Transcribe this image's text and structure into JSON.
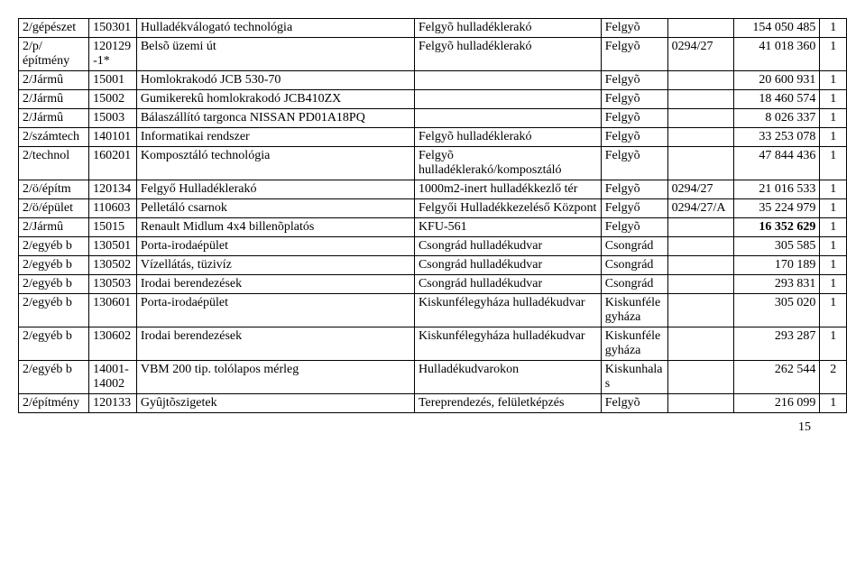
{
  "rows": [
    {
      "c0": "2/gépészet",
      "c1": "150301",
      "c2": "Hulladékválogató technológia",
      "c3": "Felgyõ hulladéklerakó",
      "c4": "Felgyõ",
      "c5": "",
      "c6": "154 050 485",
      "c7": "1"
    },
    {
      "c0": "2/p/építmény",
      "c1": "120129-1*",
      "c2": "Belsõ üzemi út",
      "c3": "Felgyõ hulladéklerakó",
      "c4": "Felgyõ",
      "c5": "0294/27",
      "c6": "41 018 360",
      "c7": "1"
    },
    {
      "c0": "2/Jármû",
      "c1": "15001",
      "c2": "Homlokrakodó JCB 530-70",
      "c3": "",
      "c4": "Felgyõ",
      "c5": "",
      "c6": "20 600 931",
      "c7": "1"
    },
    {
      "c0": "2/Jármû",
      "c1": "15002",
      "c2": "Gumikerekû homlokrakodó JCB410ZX",
      "c3": "",
      "c4": "Felgyõ",
      "c5": "",
      "c6": "18 460 574",
      "c7": "1"
    },
    {
      "c0": "2/Jármû",
      "c1": "15003",
      "c2": "Bálaszállító targonca NISSAN PD01A18PQ",
      "c3": "",
      "c4": "Felgyõ",
      "c5": "",
      "c6": "8 026 337",
      "c7": "1"
    },
    {
      "c0": "2/számtech",
      "c1": "140101",
      "c2": "Informatikai rendszer",
      "c3": "Felgyõ hulladéklerakó",
      "c4": "Felgyõ",
      "c5": "",
      "c6": "33 253 078",
      "c7": "1"
    },
    {
      "c0": "2/technol",
      "c1": "160201",
      "c2": "Komposztáló technológia",
      "c3": "Felgyõ hulladéklerakó/komposztáló",
      "c4": "Felgyõ",
      "c5": "",
      "c6": "47 844 436",
      "c7": "1"
    },
    {
      "c0": "2/ö/építm",
      "c1": "120134",
      "c2": "Felgyő Hulladéklerakó",
      "c3": "1000m2-inert hulladékkezlő tér",
      "c4": "Felgyõ",
      "c5": "0294/27",
      "c6": "21 016 533",
      "c7": "1"
    },
    {
      "c0": "2/ö/épület",
      "c1": "110603",
      "c2": "Pelletáló csarnok",
      "c3": "Felgyői Hulladékkezeléső Központ",
      "c4": "Felgyő",
      "c5": "0294/27/A",
      "c6": "35 224 979",
      "c7": "1"
    },
    {
      "c0": "2/Jármû",
      "c1": "15015",
      "c2": "Renault Midlum 4x4 billenõplatós",
      "c3": "KFU-561",
      "c4": "Felgyõ",
      "c5": "",
      "c6": "16 352 629",
      "c7": "1",
      "bold": true
    },
    {
      "c0": "2/egyéb b",
      "c1": "130501",
      "c2": "Porta-irodaépület",
      "c3": "Csongrád hulladékudvar",
      "c4": "Csongrád",
      "c5": "",
      "c6": "305 585",
      "c7": "1"
    },
    {
      "c0": "2/egyéb b",
      "c1": "130502",
      "c2": "Vízellátás, tüzivíz",
      "c3": "Csongrád hulladékudvar",
      "c4": "Csongrád",
      "c5": "",
      "c6": "170 189",
      "c7": "1"
    },
    {
      "c0": "2/egyéb b",
      "c1": "130503",
      "c2": "Irodai berendezések",
      "c3": "Csongrád hulladékudvar",
      "c4": "Csongrád",
      "c5": "",
      "c6": "293 831",
      "c7": "1"
    },
    {
      "c0": "2/egyéb b",
      "c1": "130601",
      "c2": "Porta-irodaépület",
      "c3": "Kiskunfélegyháza hulladékudvar",
      "c4": "Kiskunfélegyháza",
      "c5": "",
      "c6": "305 020",
      "c7": "1"
    },
    {
      "c0": "2/egyéb b",
      "c1": "130602",
      "c2": "Irodai berendezések",
      "c3": "Kiskunfélegyháza hulladékudvar",
      "c4": "Kiskunfélegyháza",
      "c5": "",
      "c6": "293 287",
      "c7": "1"
    },
    {
      "c0": "2/egyéb b",
      "c1": "14001-14002",
      "c2": "VBM 200 tip. tolólapos mérleg",
      "c3": "Hulladékudvarokon",
      "c4": "Kiskunhalas",
      "c5": "",
      "c6": "262 544",
      "c7": "2"
    },
    {
      "c0": "2/építmény",
      "c1": "120133",
      "c2": "Gyûjtõszigetek",
      "c3": "Tereprendezés, felületképzés",
      "c4": "Felgyõ",
      "c5": "",
      "c6": "216 099",
      "c7": "1"
    }
  ],
  "page_number": "15"
}
